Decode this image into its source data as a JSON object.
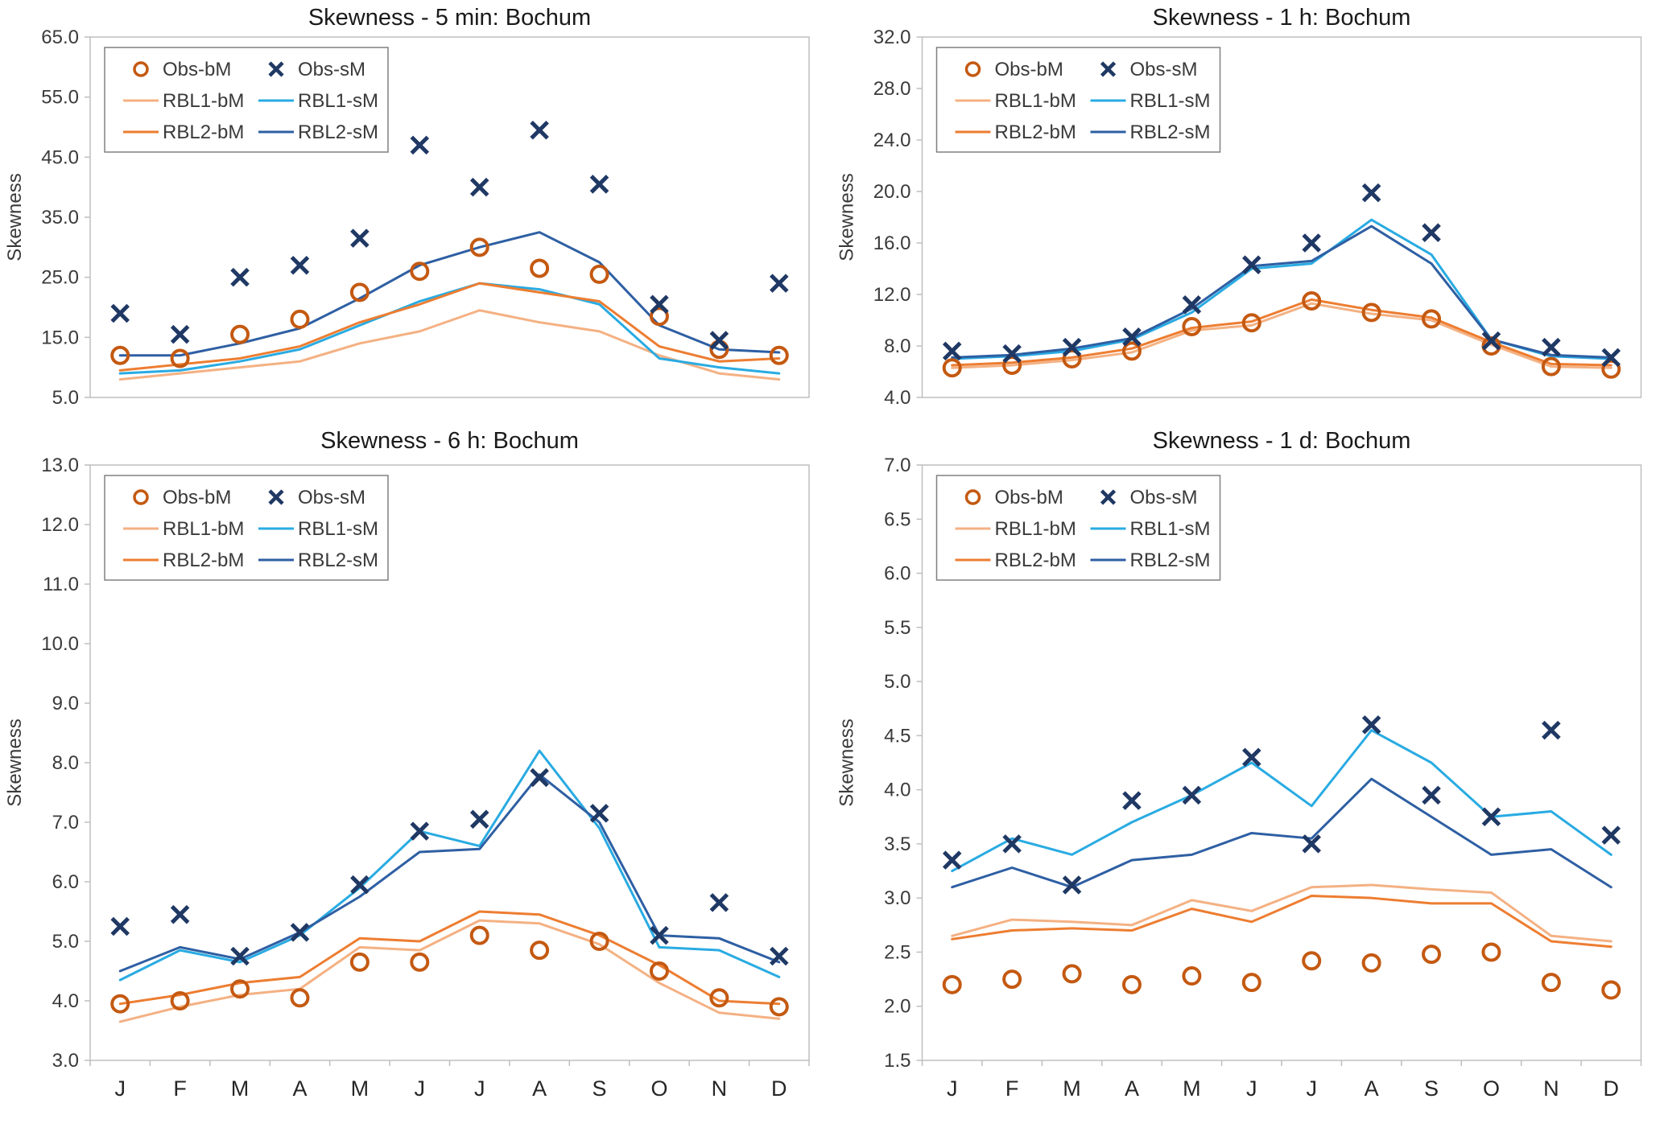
{
  "figure": {
    "background": "#ffffff"
  },
  "months": [
    "J",
    "F",
    "M",
    "A",
    "M",
    "J",
    "J",
    "A",
    "S",
    "O",
    "N",
    "D"
  ],
  "colors": {
    "obs_bM": "#C45911",
    "obs_sM": "#1F3864",
    "rbl1_bM": "#F4B183",
    "rbl2_bM": "#ED7D31",
    "rbl1_sM": "#29ABE2",
    "rbl2_sM": "#2E5FA3",
    "axis_border": "#BFBFBF",
    "tick_text": "#3A3A3A",
    "title_text": "#1A1A1A",
    "legend_border": "#808080"
  },
  "chart_data": [
    {
      "type": "line",
      "title": "Skewness - 5 min: Bochum",
      "ylabel": "Skewness",
      "ylim": [
        5.0,
        65.0
      ],
      "ytick_step": 10.0,
      "grid": false,
      "legend_position": "top-left",
      "categories": [
        "J",
        "F",
        "M",
        "A",
        "M",
        "J",
        "J",
        "A",
        "S",
        "O",
        "N",
        "D"
      ],
      "series": [
        {
          "name": "Obs-bM",
          "style": "circle",
          "color_key": "obs_bM",
          "values": [
            12.0,
            11.5,
            15.5,
            18.0,
            22.5,
            26.0,
            30.0,
            26.5,
            25.5,
            18.5,
            13.0,
            12.0
          ]
        },
        {
          "name": "Obs-sM",
          "style": "x",
          "color_key": "obs_sM",
          "values": [
            19.0,
            15.5,
            25.0,
            27.0,
            31.5,
            47.0,
            40.0,
            49.5,
            40.5,
            20.5,
            14.5,
            24.0
          ]
        },
        {
          "name": "RBL1-bM",
          "style": "line",
          "color_key": "rbl1_bM",
          "values": [
            8.0,
            9.0,
            10.0,
            11.0,
            14.0,
            16.0,
            19.5,
            17.5,
            16.0,
            12.0,
            9.0,
            8.0
          ]
        },
        {
          "name": "RBL1-sM",
          "style": "line",
          "color_key": "rbl1_sM",
          "values": [
            9.0,
            9.5,
            11.0,
            13.0,
            17.0,
            21.0,
            24.0,
            23.0,
            20.5,
            11.5,
            10.0,
            9.0
          ]
        },
        {
          "name": "RBL2-bM",
          "style": "line",
          "color_key": "rbl2_bM",
          "values": [
            9.5,
            10.5,
            11.5,
            13.5,
            17.5,
            20.5,
            24.0,
            22.5,
            21.0,
            13.5,
            11.0,
            11.5
          ]
        },
        {
          "name": "RBL2-sM",
          "style": "line",
          "color_key": "rbl2_sM",
          "values": [
            12.0,
            12.0,
            14.0,
            16.5,
            21.5,
            27.0,
            30.0,
            32.5,
            27.5,
            17.0,
            13.0,
            12.5
          ]
        }
      ]
    },
    {
      "type": "line",
      "title": "Skewness - 1 h: Bochum",
      "ylabel": "Skewness",
      "ylim": [
        4.0,
        32.0
      ],
      "ytick_step": 4.0,
      "grid": false,
      "legend_position": "top-left",
      "categories": [
        "J",
        "F",
        "M",
        "A",
        "M",
        "J",
        "J",
        "A",
        "S",
        "O",
        "N",
        "D"
      ],
      "series": [
        {
          "name": "Obs-bM",
          "style": "circle",
          "color_key": "obs_bM",
          "values": [
            6.3,
            6.5,
            7.0,
            7.6,
            9.5,
            9.8,
            11.5,
            10.6,
            10.1,
            8.0,
            6.4,
            6.2
          ]
        },
        {
          "name": "Obs-sM",
          "style": "x",
          "color_key": "obs_sM",
          "values": [
            7.6,
            7.4,
            7.9,
            8.7,
            11.2,
            14.3,
            16.0,
            19.9,
            16.8,
            8.4,
            7.9,
            7.1
          ]
        },
        {
          "name": "RBL1-bM",
          "style": "line",
          "color_key": "rbl1_bM",
          "values": [
            6.3,
            6.5,
            6.9,
            7.5,
            9.2,
            9.6,
            11.3,
            10.5,
            10.0,
            8.1,
            6.4,
            6.3
          ]
        },
        {
          "name": "RBL1-sM",
          "style": "line",
          "color_key": "rbl1_sM",
          "values": [
            7.0,
            7.2,
            7.6,
            8.5,
            10.6,
            14.0,
            14.4,
            17.8,
            15.1,
            8.5,
            7.2,
            7.0
          ]
        },
        {
          "name": "RBL2-bM",
          "style": "line",
          "color_key": "rbl2_bM",
          "values": [
            6.5,
            6.7,
            7.1,
            7.8,
            9.4,
            9.9,
            11.6,
            10.8,
            10.2,
            8.3,
            6.6,
            6.5
          ]
        },
        {
          "name": "RBL2-sM",
          "style": "line",
          "color_key": "rbl2_sM",
          "values": [
            7.1,
            7.3,
            7.8,
            8.6,
            10.9,
            14.2,
            14.6,
            17.3,
            14.4,
            8.5,
            7.3,
            7.1
          ]
        }
      ]
    },
    {
      "type": "line",
      "title": "Skewness - 6 h: Bochum",
      "ylabel": "Skewness",
      "ylim": [
        3.0,
        13.0
      ],
      "ytick_step": 1.0,
      "grid": false,
      "legend_position": "top-left",
      "categories": [
        "J",
        "F",
        "M",
        "A",
        "M",
        "J",
        "J",
        "A",
        "S",
        "O",
        "N",
        "D"
      ],
      "series": [
        {
          "name": "Obs-bM",
          "style": "circle",
          "color_key": "obs_bM",
          "values": [
            3.95,
            4.0,
            4.2,
            4.05,
            4.65,
            4.65,
            5.1,
            4.85,
            5.0,
            4.5,
            4.05,
            3.9
          ]
        },
        {
          "name": "Obs-sM",
          "style": "x",
          "color_key": "obs_sM",
          "values": [
            5.25,
            5.45,
            4.75,
            5.15,
            5.95,
            6.85,
            7.05,
            7.75,
            7.15,
            5.1,
            5.65,
            4.75
          ]
        },
        {
          "name": "RBL1-bM",
          "style": "line",
          "color_key": "rbl1_bM",
          "values": [
            3.65,
            3.9,
            4.1,
            4.2,
            4.9,
            4.85,
            5.35,
            5.3,
            4.95,
            4.3,
            3.8,
            3.7
          ]
        },
        {
          "name": "RBL1-sM",
          "style": "line",
          "color_key": "rbl1_sM",
          "values": [
            4.35,
            4.85,
            4.65,
            5.1,
            5.9,
            6.85,
            6.6,
            8.2,
            6.9,
            4.9,
            4.85,
            4.4
          ]
        },
        {
          "name": "RBL2-bM",
          "style": "line",
          "color_key": "rbl2_bM",
          "values": [
            3.95,
            4.1,
            4.3,
            4.4,
            5.05,
            5.0,
            5.5,
            5.45,
            5.1,
            4.6,
            4.0,
            3.95
          ]
        },
        {
          "name": "RBL2-sM",
          "style": "line",
          "color_key": "rbl2_sM",
          "values": [
            4.5,
            4.9,
            4.7,
            5.15,
            5.75,
            6.5,
            6.55,
            7.8,
            7.0,
            5.1,
            5.05,
            4.65
          ]
        }
      ]
    },
    {
      "type": "line",
      "title": "Skewness - 1 d: Bochum",
      "ylabel": "Skewness",
      "ylim": [
        1.5,
        7.0
      ],
      "ytick_step": 0.5,
      "grid": false,
      "legend_position": "top-left",
      "categories": [
        "J",
        "F",
        "M",
        "A",
        "M",
        "J",
        "J",
        "A",
        "S",
        "O",
        "N",
        "D"
      ],
      "series": [
        {
          "name": "Obs-bM",
          "style": "circle",
          "color_key": "obs_bM",
          "values": [
            2.2,
            2.25,
            2.3,
            2.2,
            2.28,
            2.22,
            2.42,
            2.4,
            2.48,
            2.5,
            2.22,
            2.15
          ]
        },
        {
          "name": "Obs-sM",
          "style": "x",
          "color_key": "obs_sM",
          "values": [
            3.35,
            3.5,
            3.12,
            3.9,
            3.95,
            4.3,
            3.5,
            4.6,
            3.95,
            3.75,
            4.55,
            3.58
          ]
        },
        {
          "name": "RBL1-bM",
          "style": "line",
          "color_key": "rbl1_bM",
          "values": [
            2.65,
            2.8,
            2.78,
            2.75,
            2.98,
            2.88,
            3.1,
            3.12,
            3.08,
            3.05,
            2.65,
            2.6
          ]
        },
        {
          "name": "RBL1-sM",
          "style": "line",
          "color_key": "rbl1_sM",
          "values": [
            3.25,
            3.55,
            3.4,
            3.7,
            3.95,
            4.25,
            3.85,
            4.55,
            4.25,
            3.75,
            3.8,
            3.4
          ]
        },
        {
          "name": "RBL2-bM",
          "style": "line",
          "color_key": "rbl2_bM",
          "values": [
            2.62,
            2.7,
            2.72,
            2.7,
            2.9,
            2.78,
            3.02,
            3.0,
            2.95,
            2.95,
            2.6,
            2.55
          ]
        },
        {
          "name": "RBL2-sM",
          "style": "line",
          "color_key": "rbl2_sM",
          "values": [
            3.1,
            3.28,
            3.1,
            3.35,
            3.4,
            3.6,
            3.55,
            4.1,
            3.75,
            3.4,
            3.45,
            3.1
          ]
        }
      ]
    }
  ]
}
